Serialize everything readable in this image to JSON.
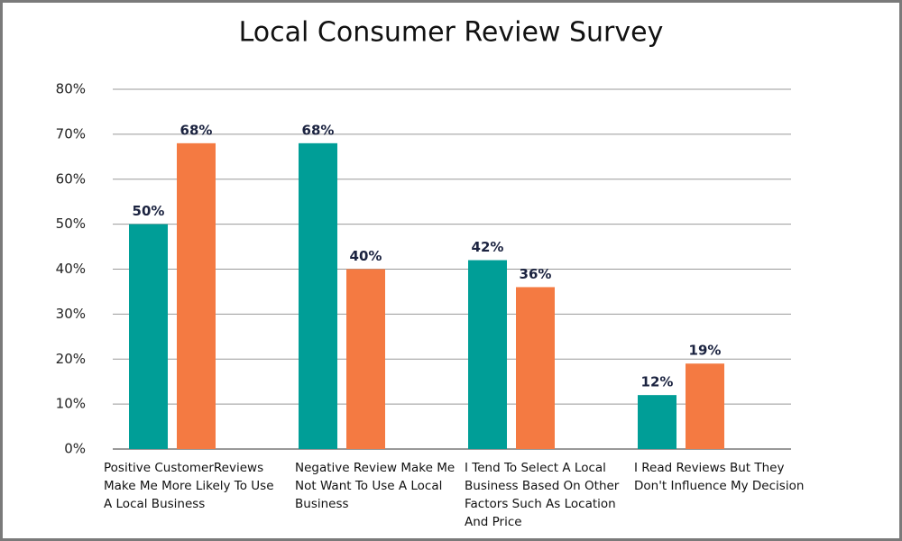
{
  "chart_data": {
    "type": "bar",
    "title": "Local Consumer Review Survey",
    "categories": [
      "Positive CustomerReviews Make Me More Likely To Use A Local Business",
      "Negative Review Make Me Not Want To Use A Local Business",
      "I Tend To Select A Local Business Based On Other Factors Such As Location And Price",
      "I Read Reviews But They Don't Influence My Decision"
    ],
    "series": [
      {
        "color": "#009e97",
        "values": [
          50,
          68,
          42,
          12
        ],
        "value_labels": [
          "50%",
          "68%",
          "42%",
          "12%"
        ]
      },
      {
        "color": "#f47a42",
        "values": [
          68,
          40,
          36,
          19
        ],
        "value_labels": [
          "68%",
          "40%",
          "36%",
          "19%"
        ]
      }
    ],
    "ylim": [
      0,
      80
    ],
    "yticks": [
      {
        "value": 0,
        "label": "0%"
      },
      {
        "value": 10,
        "label": "10%"
      },
      {
        "value": 20,
        "label": "20%"
      },
      {
        "value": 30,
        "label": "30%"
      },
      {
        "value": 40,
        "label": "40%"
      },
      {
        "value": 50,
        "label": "50%"
      },
      {
        "value": 60,
        "label": "60%"
      },
      {
        "value": 70,
        "label": "70%"
      },
      {
        "value": 80,
        "label": "80%"
      }
    ],
    "grid": true
  }
}
